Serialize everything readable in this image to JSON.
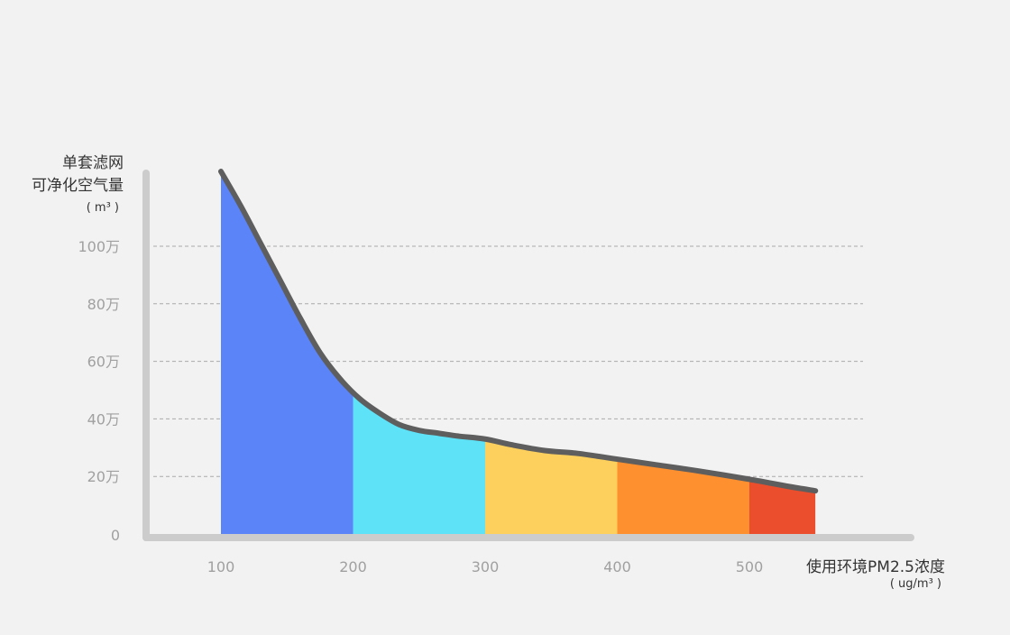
{
  "chart_data": {
    "type": "area",
    "ylabel_lines": [
      "单套滤网",
      "可净化空气量"
    ],
    "yunit": "( m³ )",
    "xlabel": "使用环境PM2.5浓度",
    "xunit": "( ug/m³ )",
    "xlim": [
      50,
      570
    ],
    "ylim": [
      0,
      110
    ],
    "x_ticks": [
      100,
      200,
      300,
      400,
      500
    ],
    "x_tick_labels": [
      "100",
      "200",
      "300",
      "400",
      "500"
    ],
    "y_ticks": [
      0,
      20,
      40,
      60,
      80,
      100
    ],
    "y_tick_labels": [
      "0",
      "20万",
      "40万",
      "60万",
      "80万",
      "100万"
    ],
    "grid": "horizontal dashed at y ticks",
    "series": [
      {
        "x": [
          100,
          115,
          130,
          145,
          160,
          175,
          190,
          205,
          220,
          235,
          250,
          265,
          280,
          300,
          320,
          345,
          370,
          400,
          430,
          460,
          500,
          530,
          550
        ],
        "y": [
          126,
          114,
          101,
          88,
          75,
          63,
          54,
          47,
          42,
          38,
          36,
          35,
          34,
          33,
          31,
          29,
          28,
          26,
          24,
          22,
          19,
          16.5,
          15
        ]
      }
    ],
    "bands": [
      {
        "from": 100,
        "to": 200,
        "color": "#5b84f8"
      },
      {
        "from": 200,
        "to": 300,
        "color": "#5ee2f8"
      },
      {
        "from": 300,
        "to": 400,
        "color": "#fdd05e"
      },
      {
        "from": 400,
        "to": 500,
        "color": "#fe9030"
      },
      {
        "from": 500,
        "to": 550,
        "color": "#ea4e2c"
      }
    ],
    "curve_color": "#5e5e5e",
    "axis_color": "#cccccc",
    "grid_color": "#aaaaaa",
    "tick_color": "#a0a0a0"
  }
}
